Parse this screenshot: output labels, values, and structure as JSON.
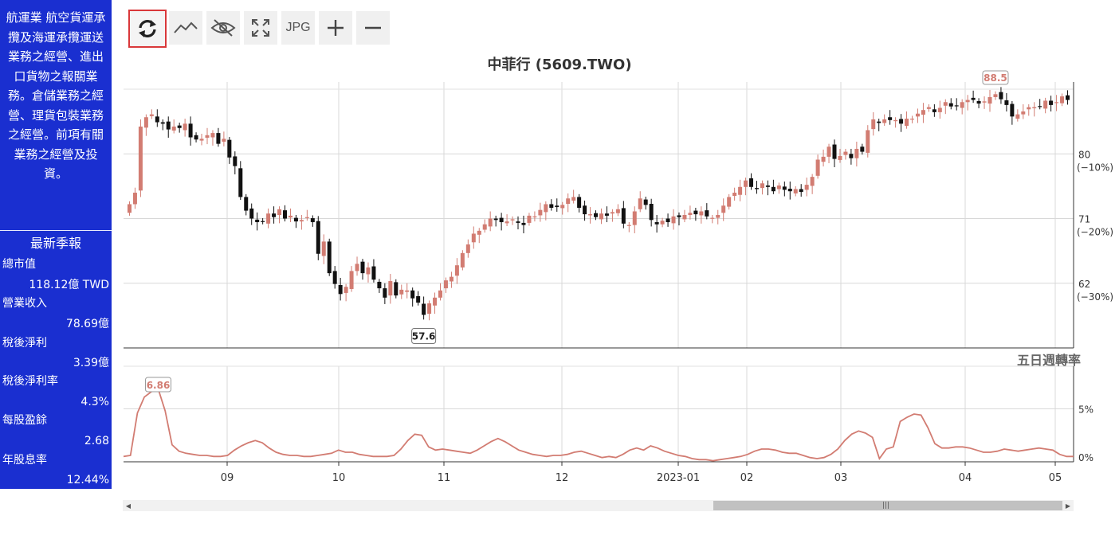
{
  "company": {
    "description": "航運業 航空貨運承攬及海運承攬運送業務之經營、進出口貨物之報關業務。倉儲業務之經營、理貨包裝業務之經營。前項有關業務之經營及投資。"
  },
  "quarterly": {
    "title": "最新季報",
    "items": [
      {
        "label": "總市值",
        "value": "118.12億 TWD"
      },
      {
        "label": "營業收入",
        "value": "78.69億"
      },
      {
        "label": "稅後淨利",
        "value": "3.39億"
      },
      {
        "label": "稅後淨利率",
        "value": "4.3%"
      },
      {
        "label": "每股盈餘",
        "value": "2.68"
      },
      {
        "label": "年股息率",
        "value": "12.44%"
      }
    ]
  },
  "toolbar": {
    "refresh_icon": "refresh-icon",
    "line_icon": "line-chart-icon",
    "hide_icon": "eye-off-icon",
    "fullscreen_icon": "fullscreen-icon",
    "jpg_label": "JPG",
    "zoom_in_icon": "plus-icon",
    "zoom_out_icon": "minus-icon",
    "active_color": "#d9383a"
  },
  "chart": {
    "title": "中菲行 (5609.TWO)",
    "max_label": "88.5",
    "min_label": "57.6",
    "y_ticks": [
      {
        "value": "80",
        "pct": "(−10%)"
      },
      {
        "value": "71",
        "pct": "(−20%)"
      },
      {
        "value": "62",
        "pct": "(−30%)"
      }
    ],
    "x_ticks": [
      "09",
      "10",
      "11",
      "12",
      "2023-01",
      "02",
      "03",
      "04",
      "05"
    ],
    "turnover_title": "五日週轉率",
    "turnover_max_label": "6.86",
    "turnover_ticks": [
      "5%",
      "0%"
    ],
    "up_color": "#d27c72",
    "down_color": "#111111"
  },
  "chart_data": [
    {
      "type": "candlestick",
      "title": "中菲行 (5609.TWO)",
      "x_ticks": [
        "09",
        "10",
        "11",
        "12",
        "2023-01",
        "02",
        "03",
        "04",
        "05"
      ],
      "ylim": [
        53,
        90
      ],
      "y_ticks": [
        62,
        71,
        80
      ],
      "y_tick_pct": [
        "(−30%)",
        "(−20%)",
        "(−10%)"
      ],
      "annotations": [
        {
          "label": "88.5",
          "kind": "max"
        },
        {
          "label": "57.6",
          "kind": "min"
        }
      ],
      "series": [
        {
          "closes": [
            73,
            74.6,
            83.8,
            85.1,
            85.5,
            84.4,
            84.2,
            83.4,
            83.8,
            83.6,
            84.2,
            82.3,
            82.0,
            82.1,
            82.6,
            82.9,
            81.4,
            82.1,
            79.5,
            78.3,
            74.0,
            72.1,
            71.0,
            70.5,
            70.6,
            71.7,
            71.2,
            72.3,
            71.0,
            71.4,
            70.6,
            70.8,
            71.2,
            70.5,
            66.1,
            67.8,
            63.4,
            61.9,
            60.5,
            61.5,
            63.7,
            64.7,
            63.4,
            64.2,
            62.5,
            61.3,
            60.0,
            62.3,
            60.3,
            61.1,
            61.0,
            59.9,
            59.3,
            57.6,
            59.2,
            60.0,
            61.0,
            62.4,
            62.9,
            64.5,
            66.2,
            67.4,
            68.9,
            69.3,
            70.2,
            71.0,
            70.8,
            70.5,
            70.6,
            70.9,
            70.4,
            70.1,
            71.4,
            71.3,
            72.2,
            73.0,
            72.5,
            72.6,
            72.9,
            73.8,
            74.0,
            72.5,
            71.6,
            71.6,
            71.2,
            71.7,
            71.4,
            71.9,
            72.3,
            70.3,
            70.1,
            72.0,
            73.8,
            72.9,
            70.8,
            70.2,
            70.7,
            70.5,
            71.3,
            71.2,
            71.5,
            71.8,
            71.6,
            72.0,
            71.3,
            71.1,
            71.5,
            72.8,
            74.0,
            74.6,
            75.4,
            76.3,
            75.4,
            75.1,
            75.9,
            75.4,
            74.8,
            75.6,
            75.0,
            74.8,
            75.1,
            74.7,
            75.7,
            76.8,
            79.2,
            79.6,
            81.0,
            79.3,
            79.7,
            80.3,
            79.4,
            80.7,
            80.3,
            83.3,
            84.8,
            84.3,
            84.8,
            84.7,
            84.7,
            84.2,
            84.9,
            84.9,
            85.6,
            86.1,
            86.5,
            85.8,
            86.4,
            87.2,
            86.6,
            86.7,
            87.2,
            87.5,
            87.5,
            87.0,
            87.3,
            87.9,
            88.3,
            87.6,
            86.8,
            85.2,
            85.5,
            85.9,
            86.5,
            86.5,
            86.6,
            87.4,
            86.8,
            87.2,
            88.0,
            87.5
          ]
        }
      ]
    },
    {
      "type": "line",
      "title": "五日週轉率",
      "x_ticks": [
        "09",
        "10",
        "11",
        "12",
        "2023-01",
        "02",
        "03",
        "04",
        "05"
      ],
      "ylim": [
        0,
        9
      ],
      "y_ticks": [
        "0%",
        "5%"
      ],
      "annotations": [
        {
          "label": "6.86",
          "kind": "max"
        }
      ],
      "series": [
        {
          "name": "五日週轉率",
          "values": [
            0.5,
            0.6,
            4.6,
            6.1,
            6.6,
            6.86,
            4.8,
            1.6,
            1.0,
            0.8,
            0.7,
            0.6,
            0.6,
            0.5,
            0.5,
            0.6,
            1.1,
            1.5,
            1.8,
            2.0,
            1.8,
            1.3,
            0.9,
            0.7,
            0.6,
            0.6,
            0.5,
            0.5,
            0.6,
            0.7,
            0.8,
            1.1,
            0.9,
            0.9,
            0.7,
            0.6,
            0.5,
            0.5,
            0.5,
            0.6,
            1.2,
            2.0,
            2.6,
            2.5,
            1.4,
            1.1,
            1.2,
            1.1,
            1.0,
            0.9,
            0.8,
            1.1,
            1.5,
            1.9,
            2.2,
            1.9,
            1.5,
            1.1,
            0.9,
            0.7,
            0.6,
            0.5,
            0.6,
            0.6,
            0.7,
            0.9,
            1.0,
            0.8,
            0.6,
            0.4,
            0.5,
            0.4,
            0.7,
            1.1,
            1.3,
            1.1,
            1.5,
            1.3,
            1.0,
            0.8,
            0.6,
            0.5,
            0.3,
            0.2,
            0.2,
            0.1,
            0.2,
            0.3,
            0.4,
            0.5,
            0.7,
            1.0,
            1.2,
            1.2,
            1.1,
            0.9,
            0.8,
            0.8,
            0.6,
            0.4,
            0.3,
            0.4,
            0.7,
            1.2,
            2.0,
            2.6,
            2.9,
            2.7,
            2.3,
            0.3,
            1.2,
            1.4,
            3.8,
            4.2,
            4.5,
            4.4,
            3.2,
            1.7,
            1.3,
            1.3,
            1.4,
            1.4,
            1.3,
            1.1,
            0.9,
            0.9,
            1.0,
            1.2,
            1.1,
            1.0,
            1.1,
            1.2,
            1.3,
            1.2,
            1.1,
            0.7,
            0.5,
            0.5
          ]
        }
      ]
    }
  ]
}
